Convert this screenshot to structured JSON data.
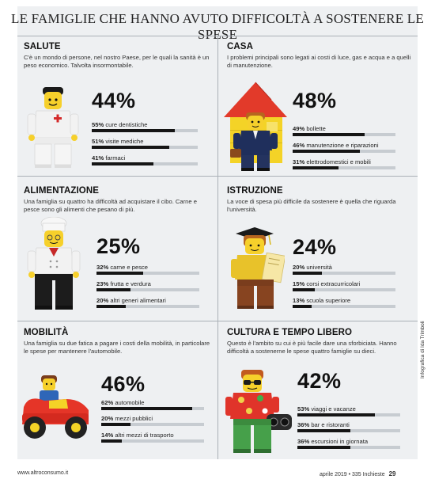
{
  "title": "LE FAMIGLIE CHE HANNO AVUTO DIFFICOLTÀ A SOSTENERE LE SPESE",
  "sections": [
    {
      "title": "SALUTE",
      "desc": "C'è un mondo di persone, nel nostro Paese, per le quali la sanità è un peso economico. Talvolta insormontabile.",
      "pct": "44%",
      "rows": [
        {
          "pct": "55%",
          "label": "cure dentistiche",
          "value": 55
        },
        {
          "pct": "51%",
          "label": "visite mediche",
          "value": 51
        },
        {
          "pct": "41%",
          "label": "farmaci",
          "value": 41
        }
      ]
    },
    {
      "title": "CASA",
      "desc": "I problemi principali sono legati ai costi di luce, gas e acqua e a quelli di manutenzione.",
      "pct": "48%",
      "rows": [
        {
          "pct": "49%",
          "label": "bollette",
          "value": 49
        },
        {
          "pct": "46%",
          "label": "manutenzione e riparazioni",
          "value": 46
        },
        {
          "pct": "31%",
          "label": "elettrodomestici e mobili",
          "value": 31
        }
      ]
    },
    {
      "title": "ALIMENTAZIONE",
      "desc": "Una famiglia su quattro ha difficoltà ad acquistare il cibo. Carne e pesce sono gli alimenti che pesano di più.",
      "pct": "25%",
      "rows": [
        {
          "pct": "32%",
          "label": "carne e pesce",
          "value": 32
        },
        {
          "pct": "23%",
          "label": "frutta e verdura",
          "value": 23
        },
        {
          "pct": "20%",
          "label": "altri generi alimentari",
          "value": 20
        }
      ]
    },
    {
      "title": "ISTRUZIONE",
      "desc": "La voce di spesa più difficile da sostenere è quella che riguarda l'università.",
      "pct": "24%",
      "rows": [
        {
          "pct": "20%",
          "label": "università",
          "value": 20
        },
        {
          "pct": "15%",
          "label": "corsi extracurricolari",
          "value": 15
        },
        {
          "pct": "13%",
          "label": "scuola superiore",
          "value": 13
        }
      ]
    },
    {
      "title": "MOBILITÀ",
      "desc": "Una famiglia su due fatica a pagare i costi della mobilità, in particolare le spese per mantenere l'automobile.",
      "pct": "46%",
      "rows": [
        {
          "pct": "62%",
          "label": "automobile",
          "value": 62
        },
        {
          "pct": "20%",
          "label": "mezzi pubblici",
          "value": 20
        },
        {
          "pct": "14%",
          "label": "altri mezzi di trasporto",
          "value": 14
        }
      ]
    },
    {
      "title": "CULTURA E TEMPO LIBERO",
      "desc": "Questo è l'ambito su cui è più facile dare una sforbiciata. Hanno difficoltà a sostenerne le spese quattro famiglie su dieci.",
      "pct": "42%",
      "rows": [
        {
          "pct": "53%",
          "label": "viaggi e vacanze",
          "value": 53
        },
        {
          "pct": "36%",
          "label": "bar e ristoranti",
          "value": 36
        },
        {
          "pct": "36%",
          "label": "escursioni in giornata",
          "value": 36
        }
      ]
    }
  ],
  "footer": {
    "site": "www.altroconsumo.it",
    "issue": "aprile 2019 • 335 Inchieste",
    "page": "29"
  },
  "credit": "Infografica di Ida Trimboli",
  "colors": {
    "panel": "#eef0f2",
    "bar": "#151515",
    "track": "#c7ccd1",
    "rule": "#aab0b6"
  },
  "icons": [
    "doctor-minifigure-icon",
    "house-minifigure-icon",
    "chef-minifigure-icon",
    "graduate-minifigure-icon",
    "car-minifigure-icon",
    "tourist-minifigure-icon"
  ]
}
